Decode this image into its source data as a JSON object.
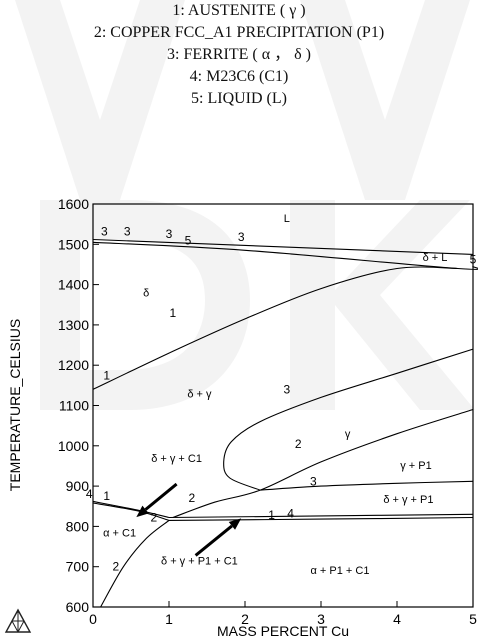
{
  "legend": [
    "1: AUSTENITE ( γ )",
    "2: COPPER FCC_A1 PRECIPITATION (P1)",
    "3: FERRITE ( α ， δ )",
    "4: M23C6 (C1)",
    "5: LIQUID (L)"
  ],
  "axes": {
    "xlabel": "MASS  PERCENT Cu",
    "ylabel": "TEMPERATURE_CELSIUS",
    "xlim": [
      0,
      5
    ],
    "ylim": [
      600,
      1600
    ],
    "xticks": [
      "0",
      "1",
      "2",
      "3",
      "4",
      "5"
    ],
    "yticks": [
      "600",
      "700",
      "800",
      "900",
      "1000",
      "1100",
      "1200",
      "1300",
      "1400",
      "1500",
      "1600"
    ]
  },
  "regions": [
    {
      "label": "L",
      "x": 2.55,
      "y": 1555
    },
    {
      "label": "δ",
      "x": 0.7,
      "y": 1370
    },
    {
      "label": "δ + L",
      "x": 4.5,
      "y": 1458
    },
    {
      "label": "δ + γ",
      "x": 1.4,
      "y": 1120
    },
    {
      "label": "γ",
      "x": 3.35,
      "y": 1020
    },
    {
      "label": "γ + P1",
      "x": 4.25,
      "y": 943
    },
    {
      "label": "δ + γ + P1",
      "x": 4.15,
      "y": 858
    },
    {
      "label": "δ + γ + C1",
      "x": 1.1,
      "y": 960
    },
    {
      "label": "α + C1",
      "x": 0.35,
      "y": 775
    },
    {
      "label": "δ + γ + P1 + C1",
      "x": 1.4,
      "y": 705
    },
    {
      "label": "α + P1 + C1",
      "x": 3.25,
      "y": 682
    }
  ],
  "line_labels": [
    {
      "label": "3",
      "x": 0.15,
      "y": 1522
    },
    {
      "label": "3",
      "x": 0.45,
      "y": 1522
    },
    {
      "label": "3",
      "x": 1.0,
      "y": 1516
    },
    {
      "label": "5",
      "x": 1.25,
      "y": 1500
    },
    {
      "label": "3",
      "x": 1.95,
      "y": 1508
    },
    {
      "label": "5",
      "x": 5.0,
      "y": 1452
    },
    {
      "label": "1",
      "x": 0.18,
      "y": 1165
    },
    {
      "label": "1",
      "x": 1.05,
      "y": 1320
    },
    {
      "label": "3",
      "x": 2.55,
      "y": 1130
    },
    {
      "label": "2",
      "x": 2.7,
      "y": 995
    },
    {
      "label": "3",
      "x": 2.9,
      "y": 902
    },
    {
      "label": "4",
      "x": -0.05,
      "y": 870
    },
    {
      "label": "1",
      "x": 0.18,
      "y": 865
    },
    {
      "label": "2",
      "x": 0.8,
      "y": 812
    },
    {
      "label": "2",
      "x": 1.3,
      "y": 860
    },
    {
      "label": "1",
      "x": 2.35,
      "y": 818
    },
    {
      "label": "4",
      "x": 2.6,
      "y": 822
    },
    {
      "label": "2",
      "x": 0.3,
      "y": 690
    }
  ],
  "curves": [
    {
      "name": "liquidus",
      "points": [
        [
          0,
          1512
        ],
        [
          5,
          1475
        ]
      ]
    },
    {
      "name": "solidus",
      "points": [
        [
          0,
          1505
        ],
        [
          2,
          1485
        ],
        [
          4.8,
          1440
        ],
        [
          5,
          1445
        ]
      ]
    },
    {
      "name": "gamma/delta",
      "points": [
        [
          0,
          1140
        ],
        [
          1,
          1230
        ],
        [
          2,
          1315
        ],
        [
          3,
          1390
        ],
        [
          4,
          1440
        ],
        [
          4.8,
          1440
        ]
      ]
    },
    {
      "name": "gamma/delta+gamma",
      "points": [
        [
          2.2,
          890
        ],
        [
          1.8,
          920
        ],
        [
          1.72,
          960
        ],
        [
          1.82,
          1010
        ],
        [
          2.2,
          1060
        ],
        [
          3,
          1120
        ],
        [
          4,
          1180
        ],
        [
          5,
          1240
        ]
      ]
    },
    {
      "name": "P1 solvus",
      "points": [
        [
          1.05,
          822
        ],
        [
          1.6,
          860
        ],
        [
          2.2,
          890
        ],
        [
          3,
          960
        ],
        [
          4,
          1030
        ],
        [
          5,
          1090
        ]
      ]
    },
    {
      "name": "delta+gamma/gamma+P1",
      "points": [
        [
          2.2,
          890
        ],
        [
          3,
          900
        ],
        [
          4,
          907
        ],
        [
          5,
          912
        ]
      ]
    },
    {
      "name": "lower horizontal 1",
      "points": [
        [
          1,
          822
        ],
        [
          3,
          826
        ],
        [
          5,
          830
        ]
      ]
    },
    {
      "name": "lower horizontal 2",
      "points": [
        [
          1,
          815
        ],
        [
          3,
          818
        ],
        [
          5,
          822
        ]
      ]
    },
    {
      "name": "C1 upper",
      "points": [
        [
          0,
          862
        ],
        [
          0.6,
          840
        ],
        [
          1,
          822
        ]
      ]
    },
    {
      "name": "C1 lower",
      "points": [
        [
          0,
          858
        ],
        [
          0.6,
          838
        ],
        [
          1,
          815
        ]
      ]
    },
    {
      "name": "P1 lower",
      "points": [
        [
          0.1,
          600
        ],
        [
          0.4,
          700
        ],
        [
          0.7,
          770
        ],
        [
          1,
          815
        ]
      ]
    }
  ],
  "arrows": [
    {
      "from": [
        1.1,
        905
      ],
      "to": [
        0.57,
        823
      ]
    },
    {
      "from": [
        1.35,
        728
      ],
      "to": [
        1.95,
        820
      ]
    }
  ]
}
